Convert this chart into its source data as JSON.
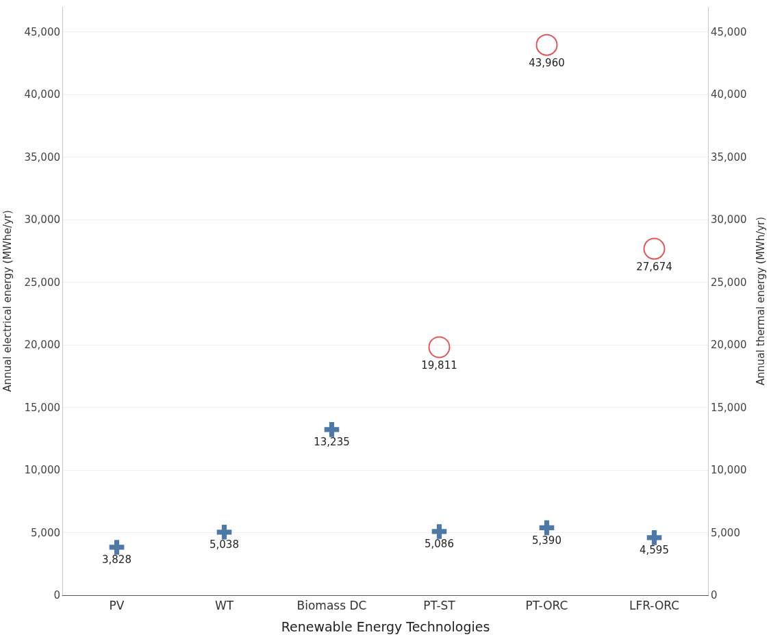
{
  "chart_data": {
    "type": "scatter",
    "xlabel": "Renewable Energy Technologies",
    "ylabel": "Annual electrical energy (MWhe/yr)",
    "y2label": "Annual thermal energy (MWh/yr)",
    "categories": [
      "PV",
      "WT",
      "Biomass DC",
      "PT-ST",
      "PT-ORC",
      "LFR-ORC"
    ],
    "series": [
      {
        "color": "#4e79a7",
        "marker": "cross",
        "values": [
          3828,
          5038,
          13235,
          5086,
          5390,
          4595
        ],
        "value_labels": [
          "3,828",
          "5,038",
          "13,235",
          "5,086",
          "5,390",
          "4,595"
        ]
      },
      {
        "color": "#e15759",
        "marker": "circle",
        "axis": "y2",
        "values": [
          null,
          null,
          null,
          19811,
          43960,
          27674
        ],
        "value_labels": [
          null,
          null,
          null,
          "19,811",
          "43,960",
          "27,674"
        ]
      }
    ],
    "ylim": [
      0,
      47000
    ],
    "yticks": [
      0,
      {
        "value": 5000,
        "label": "5,000"
      },
      {
        "value": 10000,
        "label": "10,000"
      },
      {
        "value": 15000,
        "label": "15,000"
      },
      {
        "value": 20000,
        "label": "20,000"
      },
      {
        "value": 25000,
        "label": "25,000"
      },
      {
        "value": 30000,
        "label": "30,000"
      },
      {
        "value": 35000,
        "label": "35,000"
      },
      {
        "value": 40000,
        "label": "40,000"
      },
      {
        "value": 45000,
        "label": "45,000"
      }
    ],
    "y2lim": [
      0,
      47000
    ],
    "y2ticks": [
      0,
      {
        "value": 5000,
        "label": "5,000"
      },
      {
        "value": 10000,
        "label": "10,000"
      },
      {
        "value": 15000,
        "label": "15,000"
      },
      {
        "value": 20000,
        "label": "20,000"
      },
      {
        "value": 25000,
        "label": "25,000"
      },
      {
        "value": 30000,
        "label": "30,000"
      },
      {
        "value": 35000,
        "label": "35,000"
      },
      {
        "value": 40000,
        "label": "40,000"
      },
      {
        "value": 45000,
        "label": "45,000"
      }
    ],
    "grid": "y"
  }
}
